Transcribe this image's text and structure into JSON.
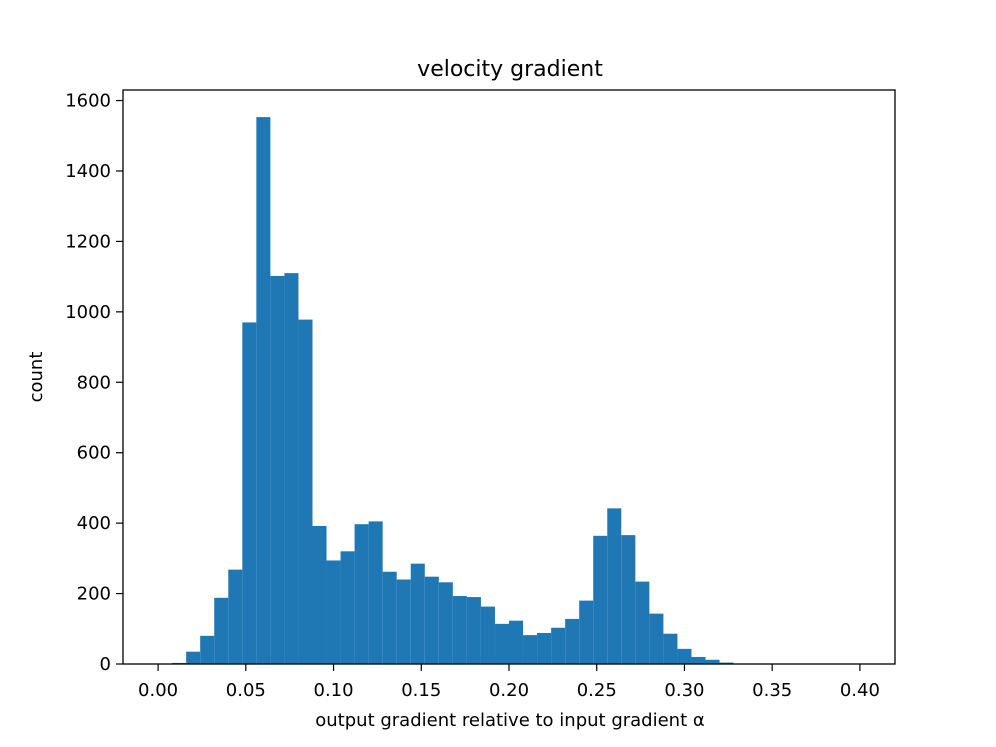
{
  "chart_data": {
    "type": "bar",
    "title": "velocity gradient",
    "xlabel": "output gradient relative to input gradient α",
    "ylabel": "count",
    "xlim": [
      -0.02,
      0.42
    ],
    "ylim": [
      0,
      1630
    ],
    "xticks": [
      "0.00",
      "0.05",
      "0.10",
      "0.15",
      "0.20",
      "0.25",
      "0.30",
      "0.35",
      "0.40"
    ],
    "yticks": [
      "0",
      "200",
      "400",
      "600",
      "800",
      "1000",
      "1200",
      "1400",
      "1600"
    ],
    "bin_start": 0.0,
    "bin_width": 0.008,
    "values": [
      0,
      3,
      35,
      80,
      188,
      268,
      970,
      1553,
      1102,
      1110,
      978,
      392,
      294,
      320,
      397,
      405,
      262,
      240,
      285,
      248,
      232,
      193,
      190,
      163,
      114,
      123,
      82,
      88,
      103,
      128,
      180,
      364,
      442,
      366,
      234,
      143,
      86,
      43,
      20,
      12,
      4,
      1,
      0,
      0,
      0,
      0,
      0,
      0,
      0,
      0,
      0
    ],
    "bar_color": "#1f77b4",
    "grid": false,
    "legend": "none"
  }
}
